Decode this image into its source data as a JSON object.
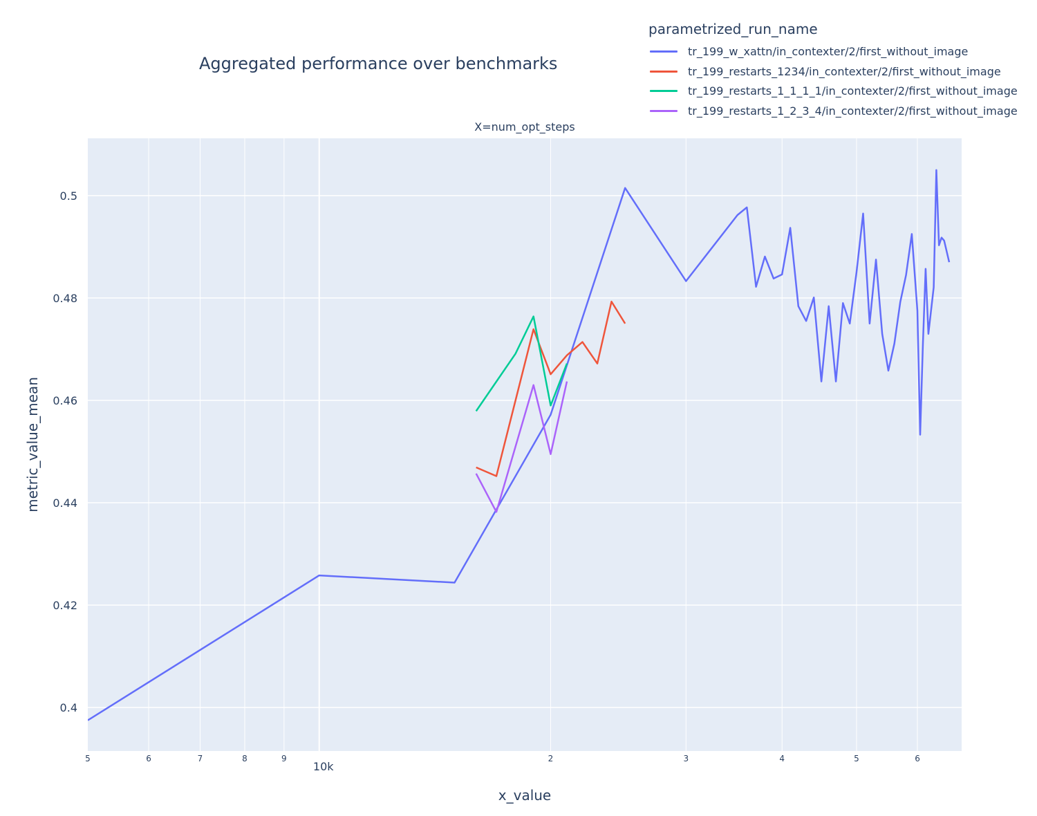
{
  "chart_data": {
    "type": "line",
    "title": "Aggregated performance over benchmarks",
    "subplot_title": "X=num_opt_steps",
    "xlabel": "x_value",
    "ylabel": "metric_value_mean",
    "x_scale": "log",
    "xlim": [
      5000,
      68500
    ],
    "ylim": [
      0.3915,
      0.5112
    ],
    "grid": true,
    "legend": {
      "title": "parametrized_run_name",
      "placement": "top-right"
    },
    "y_ticks": [
      0.4,
      0.42,
      0.44,
      0.46,
      0.48,
      0.5
    ],
    "y_tick_labels": [
      "0.4",
      "0.42",
      "0.44",
      "0.46",
      "0.48",
      "0.5"
    ],
    "x_major_ticks": [
      10000
    ],
    "x_major_tick_labels": [
      "10k"
    ],
    "x_minor_ticks": [
      5000,
      6000,
      7000,
      8000,
      9000,
      20000,
      30000,
      40000,
      50000,
      60000
    ],
    "x_minor_tick_labels": [
      "5",
      "6",
      "7",
      "8",
      "9",
      "2",
      "3",
      "4",
      "5",
      "6"
    ],
    "series": [
      {
        "name": "tr_199_w_xattn/in_contexter/2/first_without_image",
        "color": "#636efa",
        "x": [
          5000,
          10000,
          15000,
          20000,
          25000,
          30000,
          35000,
          36000,
          37000,
          38000,
          39000,
          40000,
          41000,
          42000,
          43000,
          44000,
          45000,
          46000,
          47000,
          48000,
          49000,
          50000,
          51000,
          52000,
          53000,
          54000,
          55000,
          56000,
          57000,
          58000,
          59000,
          60000,
          60500,
          61000,
          61500,
          62000,
          63000,
          63500,
          64000,
          64500,
          65000,
          66000
        ],
        "y": [
          0.3975,
          0.4258,
          0.4244,
          0.4572,
          0.5015,
          0.4833,
          0.4962,
          0.4977,
          0.4822,
          0.4881,
          0.4838,
          0.4846,
          0.4937,
          0.4784,
          0.4755,
          0.4801,
          0.4637,
          0.4784,
          0.4637,
          0.479,
          0.475,
          0.4851,
          0.4965,
          0.475,
          0.4875,
          0.473,
          0.4658,
          0.4711,
          0.4792,
          0.4845,
          0.4925,
          0.4775,
          0.4533,
          0.4711,
          0.4857,
          0.473,
          0.4821,
          0.505,
          0.4903,
          0.4918,
          0.4912,
          0.487
        ]
      },
      {
        "name": "tr_199_restarts_1234/in_contexter/2/first_without_image",
        "color": "#ef553b",
        "x": [
          16000,
          17000,
          19000,
          20000,
          21000,
          22000,
          23000,
          24000,
          25000
        ],
        "y": [
          0.4469,
          0.4452,
          0.4739,
          0.4651,
          0.4688,
          0.4714,
          0.4672,
          0.4793,
          0.475
        ]
      },
      {
        "name": "tr_199_restarts_1_1_1_1/in_contexter/2/first_without_image",
        "color": "#00cc96",
        "x": [
          16000,
          18000,
          19000,
          20000,
          21000
        ],
        "y": [
          0.4579,
          0.4691,
          0.4764,
          0.459,
          0.4672
        ]
      },
      {
        "name": "tr_199_restarts_1_2_3_4/in_contexter/2/first_without_image",
        "color": "#ab63fa",
        "x": [
          16000,
          17000,
          19000,
          20000,
          21000
        ],
        "y": [
          0.4457,
          0.4382,
          0.463,
          0.4495,
          0.4637
        ]
      }
    ]
  }
}
